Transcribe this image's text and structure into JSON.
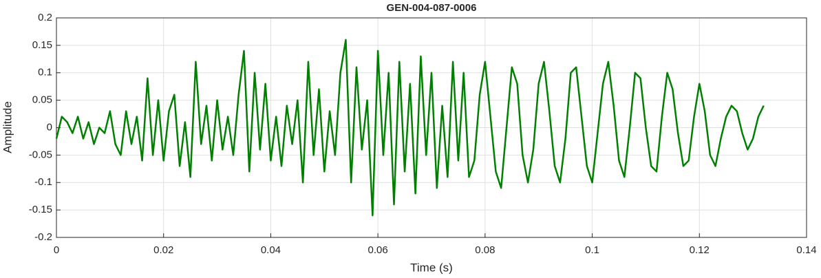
{
  "chart_data": {
    "type": "line",
    "title": "GEN-004-087-0006",
    "xlabel": "Time (s)",
    "ylabel": "Amplitude",
    "color": "#008000",
    "grid": true,
    "xlim": [
      0,
      0.14
    ],
    "ylim": [
      -0.2,
      0.2
    ],
    "xticks": [
      0,
      0.02,
      0.04,
      0.06,
      0.08,
      0.1,
      0.12,
      0.14
    ],
    "yticks": [
      -0.2,
      -0.15,
      -0.1,
      -0.05,
      0,
      0.05,
      0.1,
      0.15,
      0.2
    ],
    "x": [
      0,
      0.001,
      0.002,
      0.003,
      0.004,
      0.005,
      0.006,
      0.007,
      0.008,
      0.009,
      0.01,
      0.011,
      0.012,
      0.013,
      0.014,
      0.015,
      0.016,
      0.017,
      0.018,
      0.019,
      0.02,
      0.021,
      0.022,
      0.023,
      0.024,
      0.025,
      0.026,
      0.027,
      0.028,
      0.029,
      0.03,
      0.031,
      0.032,
      0.033,
      0.034,
      0.035,
      0.036,
      0.037,
      0.038,
      0.039,
      0.04,
      0.041,
      0.042,
      0.043,
      0.044,
      0.045,
      0.046,
      0.047,
      0.048,
      0.049,
      0.05,
      0.051,
      0.052,
      0.053,
      0.054,
      0.055,
      0.056,
      0.057,
      0.058,
      0.059,
      0.06,
      0.061,
      0.062,
      0.063,
      0.064,
      0.065,
      0.066,
      0.067,
      0.068,
      0.069,
      0.07,
      0.071,
      0.072,
      0.073,
      0.074,
      0.075,
      0.076,
      0.077,
      0.078,
      0.079,
      0.08,
      0.081,
      0.082,
      0.083,
      0.084,
      0.085,
      0.086,
      0.087,
      0.088,
      0.089,
      0.09,
      0.091,
      0.092,
      0.093,
      0.094,
      0.095,
      0.096,
      0.097,
      0.098,
      0.099,
      0.1,
      0.101,
      0.102,
      0.103,
      0.104,
      0.105,
      0.106,
      0.107,
      0.108,
      0.109,
      0.11,
      0.111,
      0.112,
      0.113,
      0.114,
      0.115,
      0.116,
      0.117,
      0.118,
      0.119,
      0.12,
      0.121,
      0.122,
      0.123,
      0.124,
      0.125,
      0.126,
      0.127,
      0.128,
      0.129,
      0.13,
      0.131,
      0.132
    ],
    "values": [
      -0.02,
      0.02,
      0.01,
      -0.01,
      0.02,
      -0.02,
      0.01,
      -0.03,
      0.0,
      -0.01,
      0.03,
      -0.03,
      -0.05,
      0.03,
      -0.03,
      0.02,
      -0.06,
      0.09,
      -0.05,
      0.05,
      -0.06,
      0.03,
      0.06,
      -0.07,
      0.01,
      -0.09,
      0.12,
      -0.03,
      0.04,
      -0.06,
      0.05,
      -0.04,
      0.02,
      -0.05,
      0.06,
      0.14,
      -0.08,
      0.1,
      -0.04,
      0.08,
      -0.06,
      0.02,
      -0.07,
      0.04,
      -0.03,
      0.05,
      -0.1,
      0.12,
      -0.05,
      0.07,
      -0.08,
      0.03,
      -0.05,
      0.1,
      0.16,
      -0.1,
      0.11,
      -0.04,
      0.05,
      -0.16,
      0.14,
      -0.05,
      0.1,
      -0.14,
      0.12,
      -0.08,
      0.08,
      -0.12,
      0.13,
      -0.05,
      0.1,
      -0.11,
      0.04,
      -0.09,
      0.12,
      -0.06,
      0.1,
      -0.09,
      -0.06,
      0.06,
      0.12,
      0.02,
      -0.08,
      -0.11,
      0.0,
      0.11,
      0.08,
      -0.05,
      -0.1,
      -0.04,
      0.08,
      0.12,
      0.03,
      -0.07,
      -0.1,
      -0.02,
      0.1,
      0.11,
      0.02,
      -0.07,
      -0.1,
      -0.01,
      0.08,
      0.12,
      0.04,
      -0.06,
      -0.09,
      0.0,
      0.1,
      0.09,
      0.0,
      -0.07,
      -0.08,
      0.02,
      0.1,
      0.07,
      -0.01,
      -0.07,
      -0.06,
      0.02,
      0.08,
      0.03,
      -0.05,
      -0.07,
      -0.02,
      0.02,
      0.04,
      0.03,
      -0.01,
      -0.04,
      -0.02,
      0.02,
      0.04
    ]
  }
}
